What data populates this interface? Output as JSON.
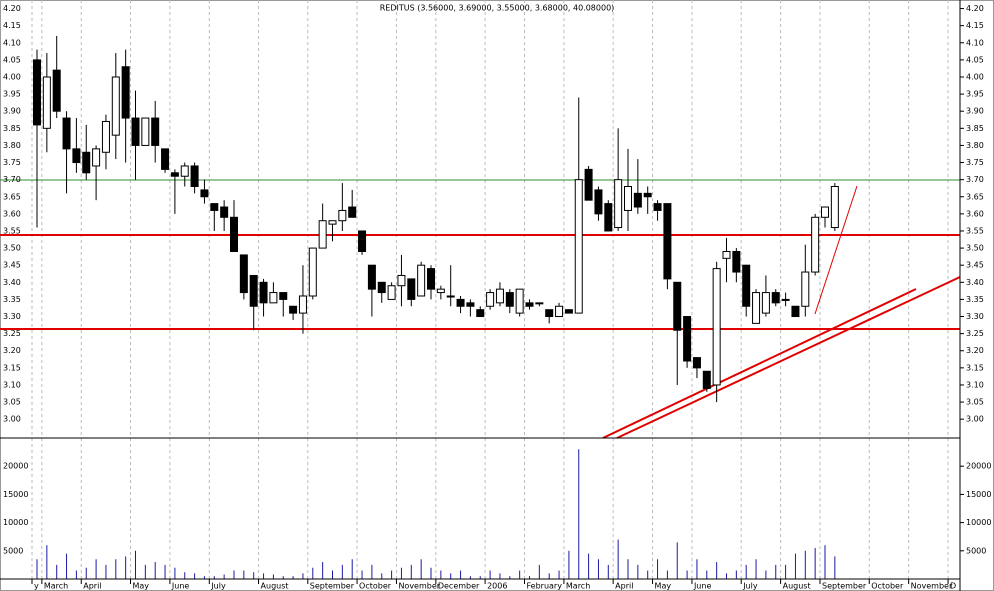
{
  "chart_data": {
    "type": "candlestick",
    "title": "REDITUS (3.56000, 3.69000, 3.55000, 3.68000, 40.08000)",
    "categories": [
      "y",
      "March",
      null,
      null,
      null,
      "April",
      null,
      null,
      null,
      null,
      "May",
      null,
      null,
      null,
      "June",
      null,
      null,
      null,
      "July",
      null,
      null,
      null,
      null,
      "August",
      null,
      null,
      null,
      null,
      "September",
      null,
      null,
      null,
      null,
      "October",
      null,
      null,
      null,
      "November",
      null,
      null,
      null,
      "December",
      null,
      null,
      null,
      null,
      "2006",
      null,
      null,
      null,
      "February",
      null,
      null,
      null,
      "March",
      null,
      null,
      null,
      null,
      "April",
      null,
      null,
      null,
      "May",
      null,
      null,
      null,
      "June",
      null,
      null,
      null,
      null,
      "July",
      null,
      null,
      null,
      "August",
      null,
      null,
      null,
      "September",
      null,
      null,
      null,
      null,
      "October",
      null,
      null,
      null,
      "November",
      null,
      null,
      null,
      "D"
    ],
    "open": [
      4.05,
      3.85,
      4.02,
      3.88,
      3.79,
      3.78,
      3.74,
      3.78,
      3.83,
      4.03,
      3.88,
      3.8,
      3.88,
      3.79,
      3.72,
      3.71,
      3.74,
      3.67,
      3.63,
      3.62,
      3.59,
      3.48,
      3.42,
      3.4,
      3.34,
      3.37,
      3.33,
      3.31,
      3.36,
      3.5,
      3.57,
      3.58,
      3.62,
      3.55,
      3.45,
      3.4,
      3.35,
      3.39,
      3.41,
      3.36,
      3.44,
      3.37,
      3.36,
      3.35,
      3.34,
      3.32,
      3.33,
      3.34,
      3.37,
      3.31,
      3.34,
      3.34,
      3.32,
      3.3,
      3.32,
      3.31,
      3.73,
      3.67,
      3.63,
      3.56,
      3.61,
      3.66,
      3.66,
      3.63,
      3.63,
      3.4,
      3.3,
      3.18,
      3.14,
      3.1,
      3.47,
      3.49,
      3.45,
      3.28,
      3.31,
      3.37,
      3.35,
      3.33,
      3.33,
      3.43,
      3.59,
      3.56,
      null,
      null,
      null,
      null,
      null,
      null,
      null,
      null,
      null,
      null,
      null,
      null
    ],
    "high": [
      4.08,
      4.07,
      4.12,
      3.9,
      3.88,
      3.86,
      3.8,
      3.89,
      4.07,
      4.08,
      3.96,
      3.88,
      3.93,
      3.79,
      3.73,
      3.75,
      3.75,
      3.7,
      3.63,
      3.64,
      3.64,
      3.48,
      3.42,
      3.41,
      3.4,
      3.37,
      3.33,
      3.45,
      3.5,
      3.63,
      3.58,
      3.69,
      3.67,
      3.55,
      3.45,
      3.4,
      3.4,
      3.48,
      3.41,
      3.46,
      3.45,
      3.39,
      3.45,
      3.36,
      3.35,
      3.33,
      3.38,
      3.4,
      3.38,
      3.38,
      3.35,
      3.34,
      3.32,
      3.34,
      3.32,
      3.94,
      3.74,
      3.68,
      3.64,
      3.85,
      3.79,
      3.76,
      3.68,
      3.64,
      3.63,
      3.4,
      3.3,
      3.18,
      3.14,
      3.46,
      3.53,
      3.5,
      3.45,
      3.38,
      3.42,
      3.38,
      3.37,
      3.33,
      3.51,
      3.6,
      3.62,
      3.69,
      null,
      null,
      null,
      null,
      null,
      null,
      null,
      null,
      null,
      null,
      null,
      null
    ],
    "low": [
      3.56,
      3.78,
      3.88,
      3.66,
      3.72,
      3.7,
      3.64,
      3.73,
      3.76,
      3.75,
      3.7,
      3.8,
      3.75,
      3.72,
      3.6,
      3.68,
      3.66,
      3.63,
      3.55,
      3.55,
      3.49,
      3.35,
      3.26,
      3.3,
      3.34,
      3.3,
      3.29,
      3.25,
      3.35,
      3.5,
      3.52,
      3.55,
      3.59,
      3.48,
      3.3,
      3.34,
      3.35,
      3.33,
      3.33,
      3.36,
      3.35,
      3.35,
      3.33,
      3.31,
      3.3,
      3.3,
      3.32,
      3.33,
      3.31,
      3.3,
      3.32,
      3.33,
      3.28,
      3.3,
      3.31,
      3.31,
      3.64,
      3.58,
      3.55,
      3.55,
      3.55,
      3.6,
      3.6,
      3.58,
      3.38,
      3.1,
      3.15,
      3.12,
      3.08,
      3.05,
      3.4,
      3.4,
      3.3,
      3.28,
      3.3,
      3.33,
      3.33,
      3.3,
      3.3,
      3.42,
      3.56,
      3.55,
      null,
      null,
      null,
      null,
      null,
      null,
      null,
      null,
      null,
      null,
      null,
      null
    ],
    "close": [
      3.86,
      4.0,
      3.9,
      3.79,
      3.75,
      3.72,
      3.79,
      3.87,
      4.0,
      3.88,
      3.8,
      3.88,
      3.8,
      3.73,
      3.71,
      3.74,
      3.68,
      3.65,
      3.61,
      3.59,
      3.49,
      3.37,
      3.33,
      3.34,
      3.37,
      3.35,
      3.31,
      3.36,
      3.5,
      3.58,
      3.58,
      3.61,
      3.59,
      3.49,
      3.38,
      3.37,
      3.39,
      3.42,
      3.35,
      3.45,
      3.38,
      3.38,
      3.36,
      3.33,
      3.33,
      3.3,
      3.37,
      3.38,
      3.33,
      3.38,
      3.33,
      3.34,
      3.3,
      3.33,
      3.31,
      3.7,
      3.64,
      3.6,
      3.55,
      3.7,
      3.68,
      3.62,
      3.65,
      3.61,
      3.41,
      3.26,
      3.17,
      3.15,
      3.09,
      3.44,
      3.49,
      3.43,
      3.33,
      3.37,
      3.37,
      3.34,
      3.35,
      3.3,
      3.43,
      3.59,
      3.62,
      3.68,
      null,
      null,
      null,
      null,
      null,
      null,
      null,
      null,
      null,
      null,
      null,
      null
    ],
    "volume": [
      3500,
      6000,
      2500,
      4500,
      1500,
      2000,
      3500,
      2500,
      3500,
      4000,
      5000,
      2500,
      3000,
      2500,
      2000,
      1200,
      1000,
      500,
      500,
      800,
      1500,
      1500,
      1200,
      1000,
      800,
      500,
      500,
      1000,
      2000,
      3000,
      1500,
      2500,
      3500,
      1500,
      2500,
      1000,
      1500,
      2000,
      2500,
      3500,
      2000,
      1500,
      1000,
      1500,
      500,
      500,
      1500,
      1000,
      500,
      1500,
      500,
      2500,
      1000,
      1500,
      5000,
      23000,
      4500,
      3500,
      2500,
      7000,
      3500,
      2500,
      1500,
      3500,
      1500,
      6500,
      1500,
      3500,
      1500,
      3000,
      1000,
      1500,
      2500,
      3500,
      1500,
      2500,
      2500,
      4500,
      5000,
      5500,
      6000,
      4000,
      null,
      null,
      null,
      null,
      null,
      null,
      null,
      null,
      null,
      null,
      null,
      null
    ],
    "ylim": [
      2.945,
      4.225
    ],
    "yticks": [
      {
        "value": 3.0,
        "label": "3.00"
      },
      {
        "value": 3.05,
        "label": "3.05"
      },
      {
        "value": 3.1,
        "label": "3.10"
      },
      {
        "value": 3.15,
        "label": "3.15"
      },
      {
        "value": 3.2,
        "label": "3.20"
      },
      {
        "value": 3.25,
        "label": "3.25"
      },
      {
        "value": 3.3,
        "label": "3.30"
      },
      {
        "value": 3.35,
        "label": "3.35"
      },
      {
        "value": 3.4,
        "label": "3.40"
      },
      {
        "value": 3.45,
        "label": "3.45"
      },
      {
        "value": 3.5,
        "label": "3.50"
      },
      {
        "value": 3.55,
        "label": "3.55"
      },
      {
        "value": 3.6,
        "label": "3.60"
      },
      {
        "value": 3.65,
        "label": "3.65"
      },
      {
        "value": 3.7,
        "label": "3.70"
      },
      {
        "value": 3.75,
        "label": "3.75"
      },
      {
        "value": 3.8,
        "label": "3.80"
      },
      {
        "value": 3.85,
        "label": "3.85"
      },
      {
        "value": 3.9,
        "label": "3.90"
      },
      {
        "value": 3.95,
        "label": "3.95"
      },
      {
        "value": 4.0,
        "label": "4.00"
      },
      {
        "value": 4.05,
        "label": "4.05"
      },
      {
        "value": 4.1,
        "label": "4.10"
      },
      {
        "value": 4.15,
        "label": "4.15"
      },
      {
        "value": 4.2,
        "label": "4.20"
      }
    ],
    "y2lim": [
      0,
      25000
    ],
    "y2ticks": [
      5000,
      10000,
      15000,
      20000
    ],
    "up_color": "#ffffff",
    "down_color": "#000000",
    "volume_color": "#1a1aa6"
  }
}
